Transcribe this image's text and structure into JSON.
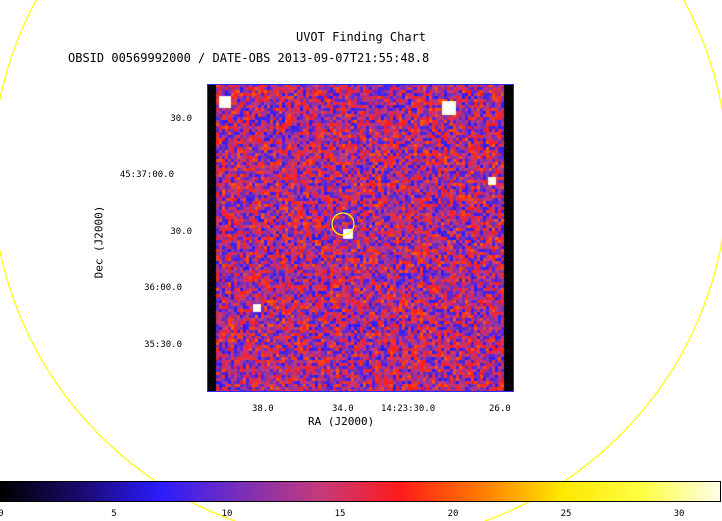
{
  "chart": {
    "title": "UVOT Finding Chart",
    "subtitle": "OBSID 00569992000 / DATE-OBS 2013-09-07T21:55:48.8",
    "x_label": "RA (J2000)",
    "y_label": "Dec (J2000)",
    "x_ticks": [
      "38.0",
      "34.0",
      "14:23:30.0",
      "26.0"
    ],
    "y_ticks": [
      "30.0",
      "45:37:00.0",
      "30.0",
      "36:00.0",
      "35:30.0"
    ],
    "colorbar_ticks": [
      "0",
      "5",
      "10",
      "15",
      "20",
      "25",
      "30"
    ],
    "colorbar_range": [
      0,
      32
    ],
    "colorbar_colors": [
      "#000000",
      "#1a0a6e",
      "#2b1cff",
      "#7a2fb8",
      "#c43a7a",
      "#ff1a1a",
      "#ff7a00",
      "#ffe600",
      "#ffff40",
      "#ffffe8"
    ],
    "circle_color": "#ffff00"
  }
}
